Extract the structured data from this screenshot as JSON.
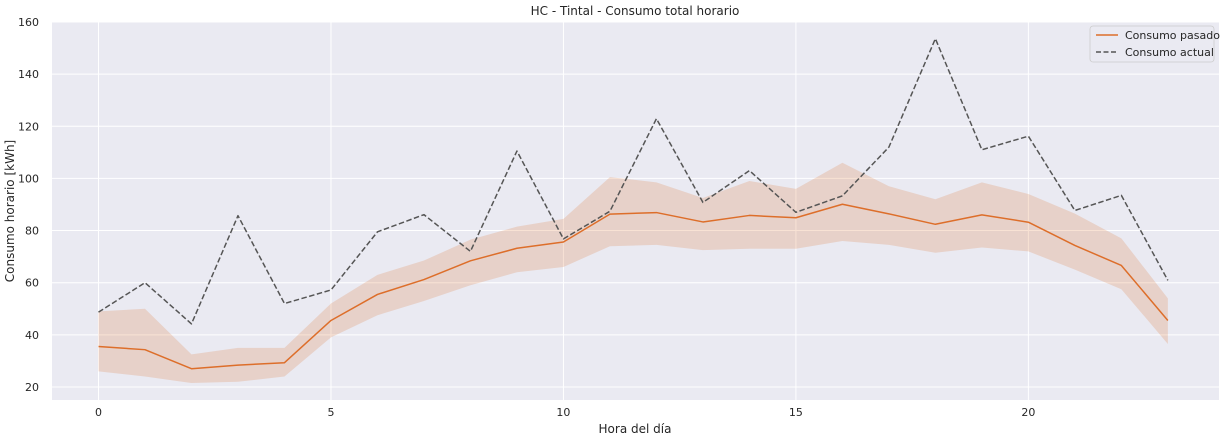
{
  "chart_data": {
    "type": "line",
    "title": "HC - Tintal - Consumo total horario",
    "xlabel": "Hora del día",
    "ylabel": "Consumo horario [kWh]",
    "xlim": [
      -1,
      24.1
    ],
    "ylim": [
      15,
      160
    ],
    "xticks": [
      0,
      5,
      10,
      15,
      20
    ],
    "yticks": [
      20,
      40,
      60,
      80,
      100,
      120,
      140,
      160
    ],
    "grid": true,
    "legend_position": "top-right",
    "x": [
      0,
      1,
      2,
      3,
      4,
      5,
      6,
      7,
      8,
      9,
      10,
      11,
      12,
      13,
      14,
      15,
      16,
      17,
      18,
      19,
      20,
      21,
      22,
      23
    ],
    "series": [
      {
        "name": "Consumo pasado",
        "style": "solid",
        "color": "#dd6e2a",
        "values": [
          35.5,
          34.3,
          27.0,
          28.4,
          29.3,
          45.5,
          55.5,
          61.2,
          68.4,
          73.2,
          75.6,
          86.3,
          86.9,
          83.3,
          85.8,
          84.9,
          90.1,
          86.4,
          82.4,
          86.0,
          83.2,
          74.3,
          66.6,
          45.5
        ],
        "band_lower": [
          26,
          24,
          21.5,
          22,
          24,
          39,
          47.5,
          53,
          59,
          64,
          66,
          74,
          74.5,
          72.5,
          73,
          73,
          76,
          74.5,
          71.5,
          73.5,
          72,
          65,
          57.5,
          36.5
        ],
        "band_upper": [
          49,
          50,
          32.5,
          35,
          35,
          52,
          63,
          68.5,
          76.5,
          81.5,
          84.5,
          100.5,
          98.5,
          92.5,
          99,
          96,
          106,
          97,
          92,
          98.5,
          94,
          86.5,
          77,
          54
        ]
      },
      {
        "name": "Consumo actual",
        "style": "dashed",
        "color": "#555555",
        "values": [
          48.7,
          60.0,
          44.2,
          85.7,
          52.0,
          57.2,
          79.5,
          86.1,
          72.0,
          110.5,
          76.8,
          87.4,
          122.9,
          90.8,
          103.0,
          87.0,
          93.3,
          112.0,
          153.6,
          111.0,
          116.2,
          87.7,
          93.5,
          60.9
        ]
      }
    ]
  }
}
